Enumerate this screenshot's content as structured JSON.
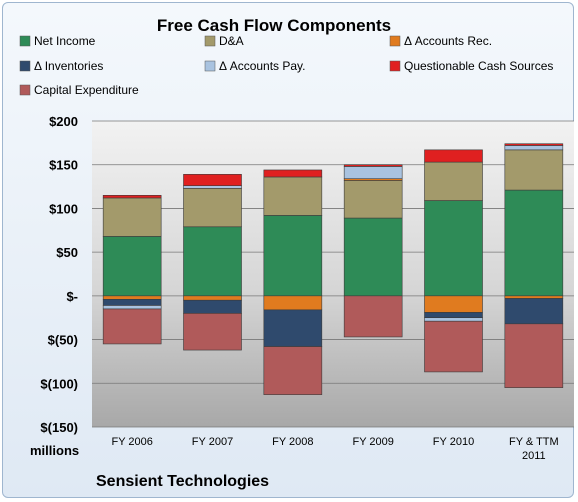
{
  "chart_data": {
    "type": "bar",
    "stacked": true,
    "title": "Free Cash Flow Components",
    "units_label": "millions",
    "company": "Sensient Technologies",
    "ylim": [
      -150,
      200
    ],
    "yticks": [
      200,
      150,
      100,
      50,
      0,
      -50,
      -100,
      -150
    ],
    "ytick_labels": [
      "$200",
      "$150",
      "$100",
      "$50",
      "$-",
      "$(50)",
      "$(100)",
      "$(150)"
    ],
    "grid": true,
    "legend_position": "top",
    "categories": [
      [
        "FY 2006"
      ],
      [
        "FY 2007"
      ],
      [
        "FY 2008"
      ],
      [
        "FY 2009"
      ],
      [
        "FY 2010"
      ],
      [
        "FY & TTM",
        "2011"
      ]
    ],
    "series": [
      {
        "name": "Net Income",
        "color": "#2e8b57",
        "values": [
          68,
          79,
          92,
          89,
          109,
          121
        ]
      },
      {
        "name": "D&A",
        "color": "#a39a6b",
        "values": [
          44,
          44,
          44,
          43,
          44,
          46
        ]
      },
      {
        "name": "Δ Accounts Rec.",
        "color": "#e07b1f",
        "values": [
          -4,
          -5,
          -16,
          2,
          -19,
          -3
        ]
      },
      {
        "name": "Δ Inventories",
        "color": "#2f4a6d",
        "values": [
          -7,
          -15,
          -42,
          0,
          -6,
          -29
        ]
      },
      {
        "name": "Δ Accounts Pay.",
        "color": "#a9c3e0",
        "values": [
          -4,
          3,
          0,
          14,
          -4,
          5
        ]
      },
      {
        "name": "Questionable Cash Sources",
        "color": "#e02020",
        "values": [
          3,
          13,
          8,
          2,
          14,
          2
        ]
      },
      {
        "name": "Capital Expenditure",
        "color": "#b05a5a",
        "values": [
          -40,
          -42,
          -55,
          -47,
          -58,
          -73
        ]
      }
    ]
  }
}
